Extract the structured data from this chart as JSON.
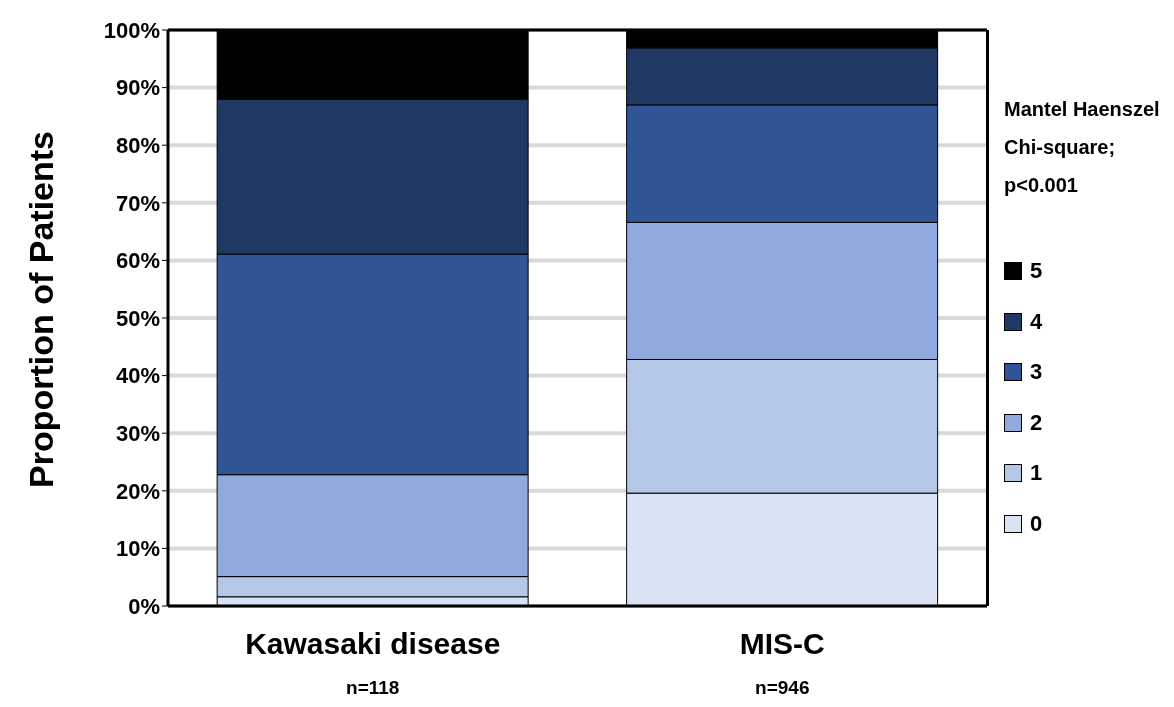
{
  "chart_data": {
    "type": "bar",
    "stacked": true,
    "ylabel": "Proportion of Patients",
    "categories": [
      "Kawasaki disease",
      "MIS-C"
    ],
    "series": [
      {
        "name": "0",
        "color": "#dae3f3",
        "values": [
          1.6,
          19.6
        ]
      },
      {
        "name": "1",
        "color": "#b4c7e7",
        "values": [
          3.5,
          23.2
        ]
      },
      {
        "name": "2",
        "color": "#8faadc",
        "values": [
          17.7,
          23.8
        ]
      },
      {
        "name": "3",
        "color": "#2f5597",
        "values": [
          38.3,
          20.4
        ]
      },
      {
        "name": "4",
        "color": "#203864",
        "values": [
          26.9,
          9.9
        ]
      },
      {
        "name": "5",
        "color": "#000000",
        "values": [
          12.0,
          3.1
        ]
      }
    ],
    "ylim": [
      0,
      100
    ],
    "yticks": [
      {
        "value": 0,
        "label": "0%"
      },
      {
        "value": 10,
        "label": "10%"
      },
      {
        "value": 20,
        "label": "20%"
      },
      {
        "value": 30,
        "label": "30%"
      },
      {
        "value": 40,
        "label": "40%"
      },
      {
        "value": 50,
        "label": "50%"
      },
      {
        "value": 60,
        "label": "60%"
      },
      {
        "value": 70,
        "label": "70%"
      },
      {
        "value": 80,
        "label": "80%"
      },
      {
        "value": 90,
        "label": "90%"
      },
      {
        "value": 100,
        "label": "100%"
      }
    ],
    "grid": "y",
    "legend": "right",
    "annotations": [
      "n=118",
      "n=946",
      "Mantel Haenszel Chi-square; p<0.001"
    ]
  }
}
